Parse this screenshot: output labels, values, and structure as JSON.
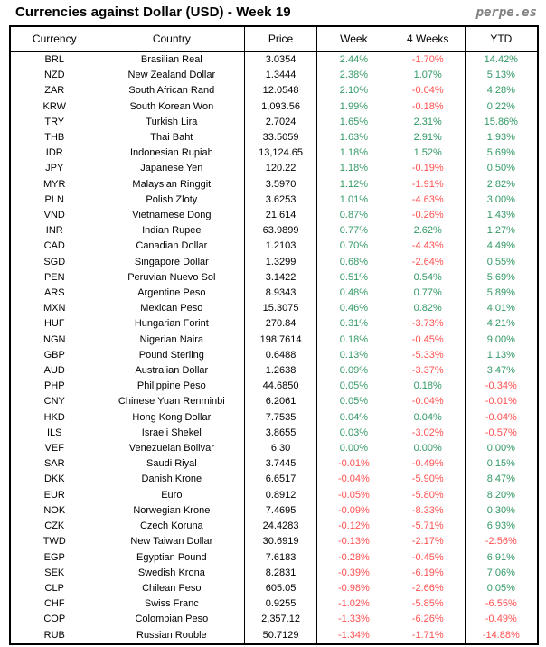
{
  "title": "Currencies against Dollar (USD) - Week 19",
  "logo": "perpe.es",
  "colors": {
    "positive": "#339966",
    "negative": "#FF5050",
    "text": "#000000",
    "logo_gray": "#808080",
    "border": "#000000"
  },
  "chart_data": {
    "type": "table",
    "title": "Currencies against Dollar (USD) - Week 19",
    "columns": [
      "Currency",
      "Country",
      "Price",
      "Week",
      "4 Weeks",
      "YTD"
    ],
    "rows": [
      {
        "code": "BRL",
        "country": "Brasilian Real",
        "price": "3.0354",
        "week": "2.44%",
        "four_weeks": "-1.70%",
        "ytd": "14.42%"
      },
      {
        "code": "NZD",
        "country": "New Zealand Dollar",
        "price": "1.3444",
        "week": "2.38%",
        "four_weeks": "1.07%",
        "ytd": "5.13%"
      },
      {
        "code": "ZAR",
        "country": "South African Rand",
        "price": "12.0548",
        "week": "2.10%",
        "four_weeks": "-0.04%",
        "ytd": "4.28%"
      },
      {
        "code": "KRW",
        "country": "South Korean Won",
        "price": "1,093.56",
        "week": "1.99%",
        "four_weeks": "-0.18%",
        "ytd": "0.22%"
      },
      {
        "code": "TRY",
        "country": "Turkish Lira",
        "price": "2.7024",
        "week": "1.65%",
        "four_weeks": "2.31%",
        "ytd": "15.86%"
      },
      {
        "code": "THB",
        "country": "Thai Baht",
        "price": "33.5059",
        "week": "1.63%",
        "four_weeks": "2.91%",
        "ytd": "1.93%"
      },
      {
        "code": "IDR",
        "country": "Indonesian Rupiah",
        "price": "13,124.65",
        "week": "1.18%",
        "four_weeks": "1.52%",
        "ytd": "5.69%"
      },
      {
        "code": "JPY",
        "country": "Japanese Yen",
        "price": "120.22",
        "week": "1.18%",
        "four_weeks": "-0.19%",
        "ytd": "0.50%"
      },
      {
        "code": "MYR",
        "country": "Malaysian Ringgit",
        "price": "3.5970",
        "week": "1.12%",
        "four_weeks": "-1.91%",
        "ytd": "2.82%"
      },
      {
        "code": "PLN",
        "country": "Polish Zloty",
        "price": "3.6253",
        "week": "1.01%",
        "four_weeks": "-4.63%",
        "ytd": "3.00%"
      },
      {
        "code": "VND",
        "country": "Vietnamese Dong",
        "price": "21,614",
        "week": "0.87%",
        "four_weeks": "-0.26%",
        "ytd": "1.43%"
      },
      {
        "code": "INR",
        "country": "Indian Rupee",
        "price": "63.9899",
        "week": "0.77%",
        "four_weeks": "2.62%",
        "ytd": "1.27%"
      },
      {
        "code": "CAD",
        "country": "Canadian Dollar",
        "price": "1.2103",
        "week": "0.70%",
        "four_weeks": "-4.43%",
        "ytd": "4.49%"
      },
      {
        "code": "SGD",
        "country": "Singapore Dollar",
        "price": "1.3299",
        "week": "0.68%",
        "four_weeks": "-2.64%",
        "ytd": "0.55%"
      },
      {
        "code": "PEN",
        "country": "Peruvian Nuevo Sol",
        "price": "3.1422",
        "week": "0.51%",
        "four_weeks": "0.54%",
        "ytd": "5.69%"
      },
      {
        "code": "ARS",
        "country": "Argentine Peso",
        "price": "8.9343",
        "week": "0.48%",
        "four_weeks": "0.77%",
        "ytd": "5.89%"
      },
      {
        "code": "MXN",
        "country": "Mexican Peso",
        "price": "15.3075",
        "week": "0.46%",
        "four_weeks": "0.82%",
        "ytd": "4.01%"
      },
      {
        "code": "HUF",
        "country": "Hungarian Forint",
        "price": "270.84",
        "week": "0.31%",
        "four_weeks": "-3.73%",
        "ytd": "4.21%"
      },
      {
        "code": "NGN",
        "country": "Nigerian Naira",
        "price": "198.7614",
        "week": "0.18%",
        "four_weeks": "-0.45%",
        "ytd": "9.00%"
      },
      {
        "code": "GBP",
        "country": "Pound Sterling",
        "price": "0.6488",
        "week": "0.13%",
        "four_weeks": "-5.33%",
        "ytd": "1.13%"
      },
      {
        "code": "AUD",
        "country": "Australian Dollar",
        "price": "1.2638",
        "week": "0.09%",
        "four_weeks": "-3.37%",
        "ytd": "3.47%"
      },
      {
        "code": "PHP",
        "country": "Philippine Peso",
        "price": "44.6850",
        "week": "0.05%",
        "four_weeks": "0.18%",
        "ytd": "-0.34%"
      },
      {
        "code": "CNY",
        "country": "Chinese Yuan Renminbi",
        "price": "6.2061",
        "week": "0.05%",
        "four_weeks": "-0.04%",
        "ytd": "-0.01%"
      },
      {
        "code": "HKD",
        "country": "Hong Kong Dollar",
        "price": "7.7535",
        "week": "0.04%",
        "four_weeks": "0.04%",
        "ytd": "-0.04%"
      },
      {
        "code": "ILS",
        "country": "Israeli Shekel",
        "price": "3.8655",
        "week": "0.03%",
        "four_weeks": "-3.02%",
        "ytd": "-0.57%"
      },
      {
        "code": "VEF",
        "country": "Venezuelan Bolivar",
        "price": "6.30",
        "week": "0.00%",
        "four_weeks": "0.00%",
        "ytd": "0.00%"
      },
      {
        "code": "SAR",
        "country": "Saudi Riyal",
        "price": "3.7445",
        "week": "-0.01%",
        "four_weeks": "-0.49%",
        "ytd": "0.15%"
      },
      {
        "code": "DKK",
        "country": "Danish Krone",
        "price": "6.6517",
        "week": "-0.04%",
        "four_weeks": "-5.90%",
        "ytd": "8.47%"
      },
      {
        "code": "EUR",
        "country": "Euro",
        "price": "0.8912",
        "week": "-0.05%",
        "four_weeks": "-5.80%",
        "ytd": "8.20%"
      },
      {
        "code": "NOK",
        "country": "Norwegian Krone",
        "price": "7.4695",
        "week": "-0.09%",
        "four_weeks": "-8.33%",
        "ytd": "0.30%"
      },
      {
        "code": "CZK",
        "country": "Czech Koruna",
        "price": "24.4283",
        "week": "-0.12%",
        "four_weeks": "-5.71%",
        "ytd": "6.93%"
      },
      {
        "code": "TWD",
        "country": "New Taiwan Dollar",
        "price": "30.6919",
        "week": "-0.13%",
        "four_weeks": "-2.17%",
        "ytd": "-2.56%"
      },
      {
        "code": "EGP",
        "country": "Egyptian Pound",
        "price": "7.6183",
        "week": "-0.28%",
        "four_weeks": "-0.45%",
        "ytd": "6.91%"
      },
      {
        "code": "SEK",
        "country": "Swedish Krona",
        "price": "8.2831",
        "week": "-0.39%",
        "four_weeks": "-6.19%",
        "ytd": "7.06%"
      },
      {
        "code": "CLP",
        "country": "Chilean Peso",
        "price": "605.05",
        "week": "-0.98%",
        "four_weeks": "-2.66%",
        "ytd": "0.05%"
      },
      {
        "code": "CHF",
        "country": "Swiss Franc",
        "price": "0.9255",
        "week": "-1.02%",
        "four_weeks": "-5.85%",
        "ytd": "-6.55%"
      },
      {
        "code": "COP",
        "country": "Colombian Peso",
        "price": "2,357.12",
        "week": "-1.33%",
        "four_weeks": "-6.26%",
        "ytd": "-0.49%"
      },
      {
        "code": "RUB",
        "country": "Russian Rouble",
        "price": "50.7129",
        "week": "-1.34%",
        "four_weeks": "-1.71%",
        "ytd": "-14.88%"
      }
    ]
  }
}
